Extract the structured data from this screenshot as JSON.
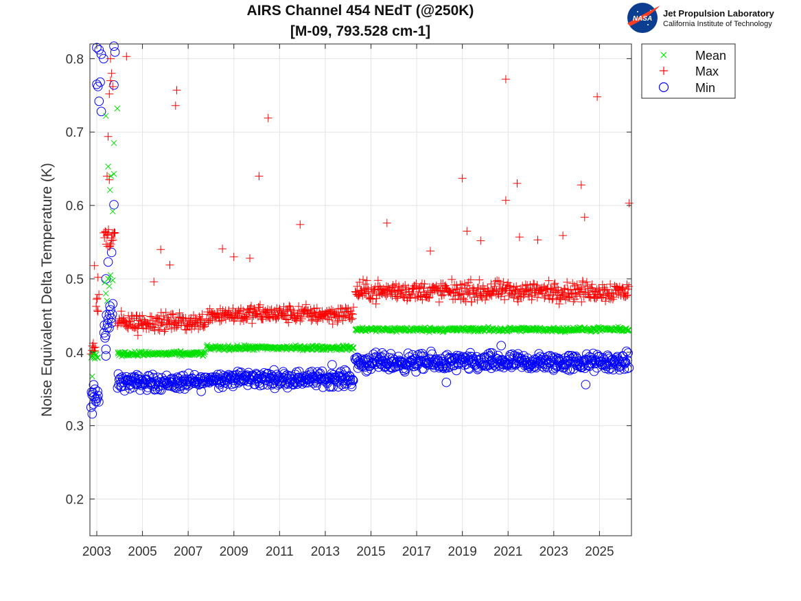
{
  "logo": {
    "mark_text": "NASA",
    "title": "Jet Propulsion Laboratory",
    "subtitle": "California Institute of Technology",
    "colors": {
      "blue": "#0b3d91",
      "red": "#fc3d21"
    }
  },
  "chart_data": {
    "type": "scatter",
    "title_lines": [
      "AIRS Channel 454 NEdT (@250K)",
      "[M-09, 793.528 cm-1]"
    ],
    "xlabel": "",
    "ylabel": "Noise Equivalent Delta Temperature (K)",
    "xlim": [
      2002.7,
      2026.4
    ],
    "ylim": [
      0.15,
      0.82
    ],
    "xticks": [
      2003,
      2005,
      2007,
      2009,
      2011,
      2013,
      2015,
      2017,
      2019,
      2021,
      2023,
      2025
    ],
    "xtick_labels": [
      "2003",
      "2005",
      "2007",
      "2009",
      "2011",
      "2013",
      "2015",
      "2017",
      "2019",
      "2021",
      "2023",
      "2025"
    ],
    "yticks": [
      0.2,
      0.3,
      0.4,
      0.5,
      0.6,
      0.7,
      0.8
    ],
    "ytick_labels": [
      "0.2",
      "0.3",
      "0.4",
      "0.5",
      "0.6",
      "0.7",
      "0.8"
    ],
    "grid": true,
    "legend_position": "outside-top-right",
    "series": [
      {
        "name": "Mean",
        "marker": "x",
        "color": "#00e000",
        "segments": [
          {
            "x": [
              2002.75,
              2003.05
            ],
            "y": 0.395,
            "jitter": 0.003
          },
          {
            "x": [
              2003.9,
              2007.75
            ],
            "y": 0.398,
            "jitter": 0.002
          },
          {
            "x": [
              2007.8,
              2014.25
            ],
            "y": 0.406,
            "jitter": 0.002
          },
          {
            "x": [
              2014.3,
              2026.3
            ],
            "y": 0.431,
            "jitter": 0.002
          }
        ],
        "extra_points": [
          {
            "x": 2002.8,
            "y": 0.367
          },
          {
            "x": 2003.35,
            "y": 0.495
          },
          {
            "x": 2003.4,
            "y": 0.48
          },
          {
            "x": 2003.45,
            "y": 0.47
          },
          {
            "x": 2003.5,
            "y": 0.5
          },
          {
            "x": 2003.55,
            "y": 0.49
          },
          {
            "x": 2003.6,
            "y": 0.505
          },
          {
            "x": 2003.7,
            "y": 0.498
          },
          {
            "x": 2003.5,
            "y": 0.653
          },
          {
            "x": 2003.58,
            "y": 0.621
          },
          {
            "x": 2003.62,
            "y": 0.64
          },
          {
            "x": 2003.7,
            "y": 0.592
          },
          {
            "x": 2003.75,
            "y": 0.685
          },
          {
            "x": 2003.75,
            "y": 0.643
          },
          {
            "x": 2003.4,
            "y": 0.722
          },
          {
            "x": 2003.9,
            "y": 0.732
          }
        ]
      },
      {
        "name": "Max",
        "marker": "+",
        "color": "#ff0000",
        "segments": [
          {
            "x": [
              2002.75,
              2002.95
            ],
            "y": 0.405,
            "jitter": 0.008
          },
          {
            "x": [
              2002.95,
              2003.1
            ],
            "y": 0.47,
            "jitter": 0.02
          },
          {
            "x": [
              2003.3,
              2003.8
            ],
            "y": 0.555,
            "jitter": 0.015
          },
          {
            "x": [
              2003.9,
              2007.75
            ],
            "y": 0.441,
            "jitter": 0.008
          },
          {
            "x": [
              2007.8,
              2014.25
            ],
            "y": 0.452,
            "jitter": 0.008
          },
          {
            "x": [
              2014.3,
              2026.3
            ],
            "y": 0.483,
            "jitter": 0.009
          }
        ],
        "extra_points": [
          {
            "x": 2002.9,
            "y": 0.518
          },
          {
            "x": 2003.05,
            "y": 0.502
          },
          {
            "x": 2003.5,
            "y": 0.694
          },
          {
            "x": 2003.45,
            "y": 0.64
          },
          {
            "x": 2003.55,
            "y": 0.635
          },
          {
            "x": 2003.55,
            "y": 0.752
          },
          {
            "x": 2003.6,
            "y": 0.77
          },
          {
            "x": 2003.65,
            "y": 0.78
          },
          {
            "x": 2003.7,
            "y": 0.762
          },
          {
            "x": 2003.6,
            "y": 0.8
          },
          {
            "x": 2004.3,
            "y": 0.803
          },
          {
            "x": 2006.5,
            "y": 0.757
          },
          {
            "x": 2006.45,
            "y": 0.736
          },
          {
            "x": 2010.5,
            "y": 0.719
          },
          {
            "x": 2010.1,
            "y": 0.64
          },
          {
            "x": 2011.9,
            "y": 0.574
          },
          {
            "x": 2005.8,
            "y": 0.54
          },
          {
            "x": 2006.2,
            "y": 0.519
          },
          {
            "x": 2005.5,
            "y": 0.496
          },
          {
            "x": 2008.5,
            "y": 0.541
          },
          {
            "x": 2009.0,
            "y": 0.53
          },
          {
            "x": 2009.7,
            "y": 0.528
          },
          {
            "x": 2015.7,
            "y": 0.576
          },
          {
            "x": 2019.0,
            "y": 0.637
          },
          {
            "x": 2019.2,
            "y": 0.565
          },
          {
            "x": 2019.8,
            "y": 0.552
          },
          {
            "x": 2020.9,
            "y": 0.772
          },
          {
            "x": 2020.9,
            "y": 0.607
          },
          {
            "x": 2021.4,
            "y": 0.63
          },
          {
            "x": 2021.5,
            "y": 0.557
          },
          {
            "x": 2022.3,
            "y": 0.553
          },
          {
            "x": 2023.4,
            "y": 0.559
          },
          {
            "x": 2024.2,
            "y": 0.628
          },
          {
            "x": 2024.35,
            "y": 0.584
          },
          {
            "x": 2024.9,
            "y": 0.748
          },
          {
            "x": 2026.3,
            "y": 0.603
          },
          {
            "x": 2017.6,
            "y": 0.538
          },
          {
            "x": 2004.8,
            "y": 0.423
          }
        ]
      },
      {
        "name": "Min",
        "marker": "o",
        "color": "#0000ff",
        "segments": [
          {
            "x": [
              2002.75,
              2003.1
            ],
            "y": 0.338,
            "jitter": 0.012
          },
          {
            "x": [
              2003.3,
              2003.7
            ],
            "y": 0.44,
            "jitter": 0.02
          },
          {
            "x": [
              2003.9,
              2007.75
            ],
            "y": 0.359,
            "jitter": 0.007
          },
          {
            "x": [
              2007.8,
              2014.25
            ],
            "y": 0.364,
            "jitter": 0.007
          },
          {
            "x": [
              2014.3,
              2026.3
            ],
            "y": 0.386,
            "jitter": 0.008
          }
        ],
        "extra_points": [
          {
            "x": 2003.0,
            "y": 0.815
          },
          {
            "x": 2003.1,
            "y": 0.812
          },
          {
            "x": 2003.2,
            "y": 0.806
          },
          {
            "x": 2003.3,
            "y": 0.8
          },
          {
            "x": 2003.75,
            "y": 0.817
          },
          {
            "x": 2003.8,
            "y": 0.809
          },
          {
            "x": 2003.0,
            "y": 0.765
          },
          {
            "x": 2003.15,
            "y": 0.768
          },
          {
            "x": 2003.05,
            "y": 0.762
          },
          {
            "x": 2003.1,
            "y": 0.742
          },
          {
            "x": 2003.2,
            "y": 0.728
          },
          {
            "x": 2003.75,
            "y": 0.764
          },
          {
            "x": 2003.75,
            "y": 0.601
          },
          {
            "x": 2003.65,
            "y": 0.536
          },
          {
            "x": 2003.5,
            "y": 0.523
          },
          {
            "x": 2003.4,
            "y": 0.5
          },
          {
            "x": 2003.7,
            "y": 0.466
          },
          {
            "x": 2003.4,
            "y": 0.395
          },
          {
            "x": 2003.4,
            "y": 0.404
          },
          {
            "x": 2002.8,
            "y": 0.316
          },
          {
            "x": 2002.75,
            "y": 0.325
          },
          {
            "x": 2020.7,
            "y": 0.409
          },
          {
            "x": 2024.4,
            "y": 0.356
          },
          {
            "x": 2013.3,
            "y": 0.383
          },
          {
            "x": 2018.3,
            "y": 0.359
          }
        ]
      }
    ]
  }
}
